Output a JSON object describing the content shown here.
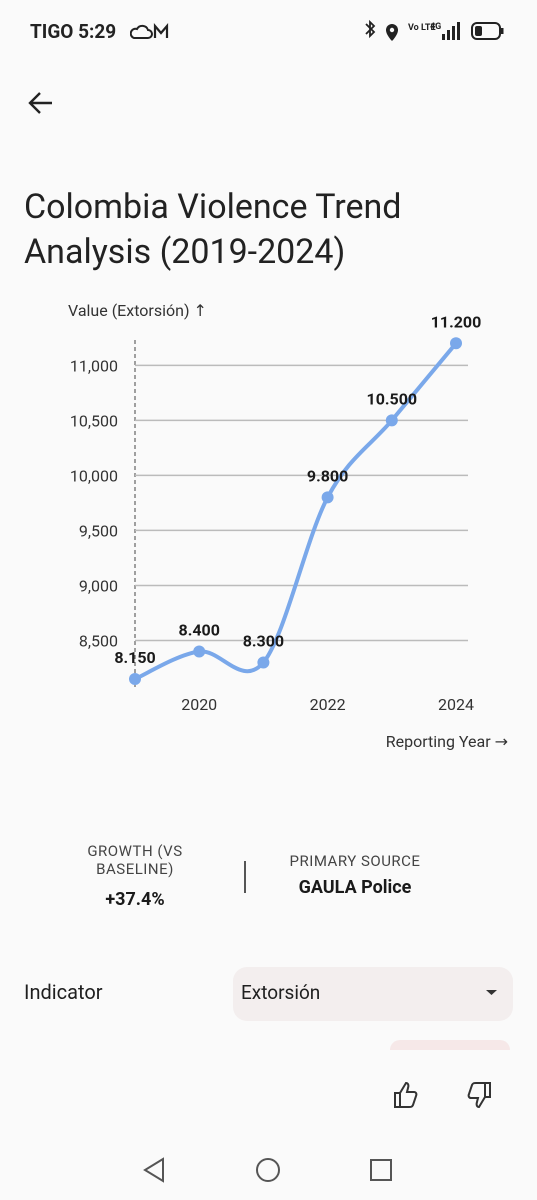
{
  "status_bar": {
    "left": "TIGO 5:29",
    "volte": "Vo LTE",
    "network": "4G"
  },
  "title": "Colombia Violence Trend Analysis (2019-2024)",
  "chart_data": {
    "type": "line",
    "x": [
      2019,
      2020,
      2021,
      2022,
      2023,
      2024
    ],
    "series": [
      {
        "name": "Extorsión",
        "color": "#7aa8ea",
        "values": [
          8150,
          8400,
          8300,
          9800,
          10500,
          11200
        ],
        "value_labels": [
          "8.150",
          "8.400",
          "8.300",
          "9.800",
          "10.500",
          "11.200"
        ]
      }
    ],
    "y_label": "Value (Extorsión) ↑",
    "x_label": "Reporting Year →",
    "xlim": [
      2019,
      2024
    ],
    "xticks": [
      2020,
      2022,
      2024
    ],
    "ylim": [
      8050,
      11230
    ],
    "yticks": [
      {
        "value": 8500,
        "label": "8,500"
      },
      {
        "value": 9000,
        "label": "9,000"
      },
      {
        "value": 9500,
        "label": "9,500"
      },
      {
        "value": 10000,
        "label": "10,000"
      },
      {
        "value": 10500,
        "label": "10,500"
      },
      {
        "value": 11000,
        "label": "11,000"
      }
    ],
    "grid": true
  },
  "stats": {
    "growth_label": "GROWTH (VS BASELINE)",
    "growth_value": "+37.4%",
    "source_label": "PRIMARY SOURCE",
    "source_value": "GAULA Police"
  },
  "indicator": {
    "label": "Indicator",
    "selected": "Extorsión"
  }
}
